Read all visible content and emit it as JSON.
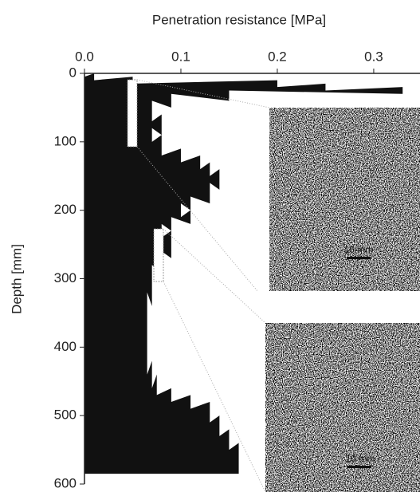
{
  "chart_data": {
    "type": "area",
    "title": "Penetration resistance [MPa]",
    "ylabel": "Depth [mm]",
    "color": "#111111",
    "y": [
      0,
      5,
      10,
      15,
      20,
      25,
      30,
      40,
      50,
      60,
      70,
      80,
      90,
      100,
      110,
      120,
      130,
      140,
      150,
      160,
      170,
      180,
      190,
      200,
      210,
      220,
      230,
      240,
      250,
      260,
      270,
      280,
      290,
      300,
      320,
      340,
      360,
      380,
      400,
      420,
      440,
      460,
      470,
      480,
      490,
      500,
      510,
      520,
      530,
      540,
      550,
      560,
      570,
      580
    ],
    "values": [
      0.0,
      0.01,
      0.05,
      0.2,
      0.25,
      0.33,
      0.15,
      0.09,
      0.07,
      0.07,
      0.08,
      0.08,
      0.07,
      0.08,
      0.08,
      0.1,
      0.12,
      0.13,
      0.14,
      0.14,
      0.13,
      0.13,
      0.11,
      0.1,
      0.11,
      0.09,
      0.08,
      0.09,
      0.09,
      0.09,
      0.08,
      0.08,
      0.07,
      0.07,
      0.07,
      0.065,
      0.065,
      0.065,
      0.065,
      0.065,
      0.07,
      0.075,
      0.09,
      0.11,
      0.13,
      0.13,
      0.14,
      0.14,
      0.15,
      0.15,
      0.16,
      0.16,
      0.16,
      0.16
    ],
    "xlim": [
      0,
      0.348
    ],
    "xticks": [
      {
        "value": 0,
        "label": "0.0"
      },
      0.1,
      0.2,
      0.3
    ],
    "ylim": [
      0,
      600
    ],
    "yticks": [
      0,
      100,
      200,
      300,
      400,
      500,
      600
    ],
    "annotations": [
      "10 mm",
      "10 mm"
    ]
  }
}
